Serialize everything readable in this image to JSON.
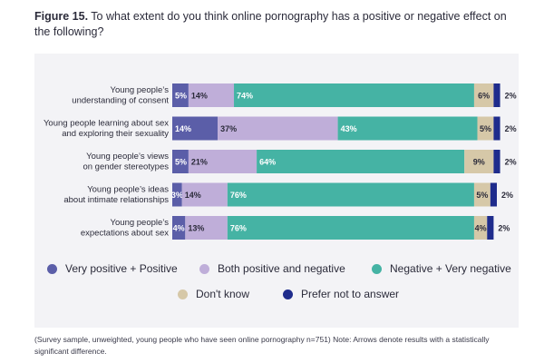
{
  "figure": {
    "label": "Figure 15.",
    "question": "To what extent do you think online pornography has a positive or negative effect on the following?",
    "note": "(Survey sample, unweighted, young people who have seen online pornography n=751) Note: Arrows denote results with a statistically significant difference."
  },
  "chart_data": {
    "type": "bar",
    "orientation": "horizontal",
    "stacked": true,
    "title": "To what extent do you think online pornography has a positive or negative effect on the following?",
    "categories": [
      [
        "Young people’s",
        "understanding of consent"
      ],
      [
        "Young people learning about sex",
        "and exploring their sexuality"
      ],
      [
        "Young people’s views",
        "on gender stereotypes"
      ],
      [
        "Young people’s ideas",
        "about intimate relationships"
      ],
      [
        "Young people’s",
        "expectations about sex"
      ]
    ],
    "series": [
      {
        "name": "Very positive + Positive",
        "color": "#5b5ea8",
        "text_color": "#ffffff",
        "values": [
          5,
          14,
          5,
          3,
          4
        ]
      },
      {
        "name": "Both positive and negative",
        "color": "#bfaed9",
        "text_color": "#2b2b3a",
        "values": [
          14,
          37,
          21,
          14,
          13
        ]
      },
      {
        "name": "Negative + Very negative",
        "color": "#45b3a4",
        "text_color": "#ffffff",
        "values": [
          74,
          43,
          64,
          76,
          76
        ]
      },
      {
        "name": "Don't know",
        "color": "#d6c8a8",
        "text_color": "#2b2b3a",
        "values": [
          6,
          5,
          9,
          5,
          4
        ]
      },
      {
        "name": "Prefer not to answer",
        "color": "#1f2c8c",
        "text_color": "#2b2b3a",
        "values": [
          2,
          2,
          2,
          2,
          2
        ]
      }
    ],
    "value_suffix": "%",
    "xlim": [
      0,
      100
    ],
    "grid": false,
    "legend_position": "bottom"
  }
}
